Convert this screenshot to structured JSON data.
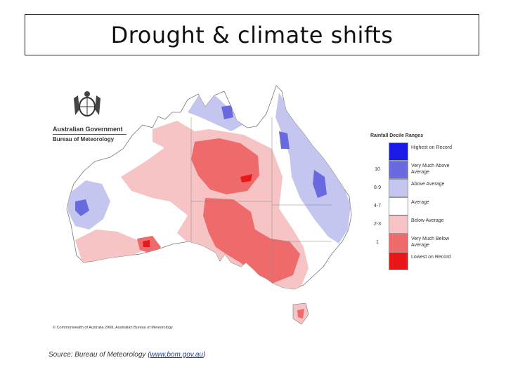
{
  "title": "Drought & climate shifts",
  "header": {
    "gov_name": "Australian Government",
    "bureau_name": "Bureau of Meteorology"
  },
  "legend": {
    "title": "Rainfall Decile Ranges",
    "entries": [
      {
        "range": "",
        "label": "Highest on Record",
        "color": "#1a1ae6"
      },
      {
        "range": "10",
        "label": "Very Much Above Average",
        "color": "#6a6ae0"
      },
      {
        "range": "8-9",
        "label": "Above Average",
        "color": "#c4c6f0"
      },
      {
        "range": "4-7",
        "label": "Average",
        "color": "#ffffff"
      },
      {
        "range": "2-3",
        "label": "Below Average",
        "color": "#f6c4c4"
      },
      {
        "range": "1",
        "label": "Very Much Below Average",
        "color": "#ef6a6a"
      },
      {
        "range": "",
        "label": "Lowest on Record",
        "color": "#e81818"
      }
    ]
  },
  "copyright": "© Commonwealth of Australia 2008, Australian Bureau of Meteorology",
  "source": {
    "prefix": "Source: Bureau of Meteorology (",
    "link": "www.bom.gov.au",
    "suffix": ")"
  }
}
